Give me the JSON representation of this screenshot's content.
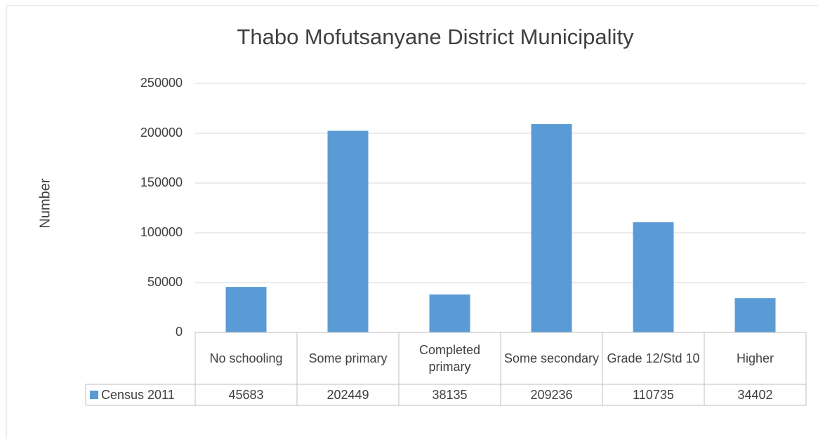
{
  "chart_data": {
    "type": "bar",
    "title": "Thabo Mofutsanyane District Municipality",
    "ylabel": "Number",
    "categories": [
      "No schooling",
      "Some primary",
      "Completed primary",
      "Some secondary",
      "Grade 12/Std 10",
      "Higher"
    ],
    "series": [
      {
        "name": "Census 2011",
        "color": "#5b9bd5",
        "values": [
          45683,
          202449,
          38135,
          209236,
          110735,
          34402
        ]
      }
    ],
    "ylim": [
      0,
      250000
    ],
    "yticks": [
      0,
      50000,
      100000,
      150000,
      200000,
      250000
    ],
    "grid": true
  }
}
